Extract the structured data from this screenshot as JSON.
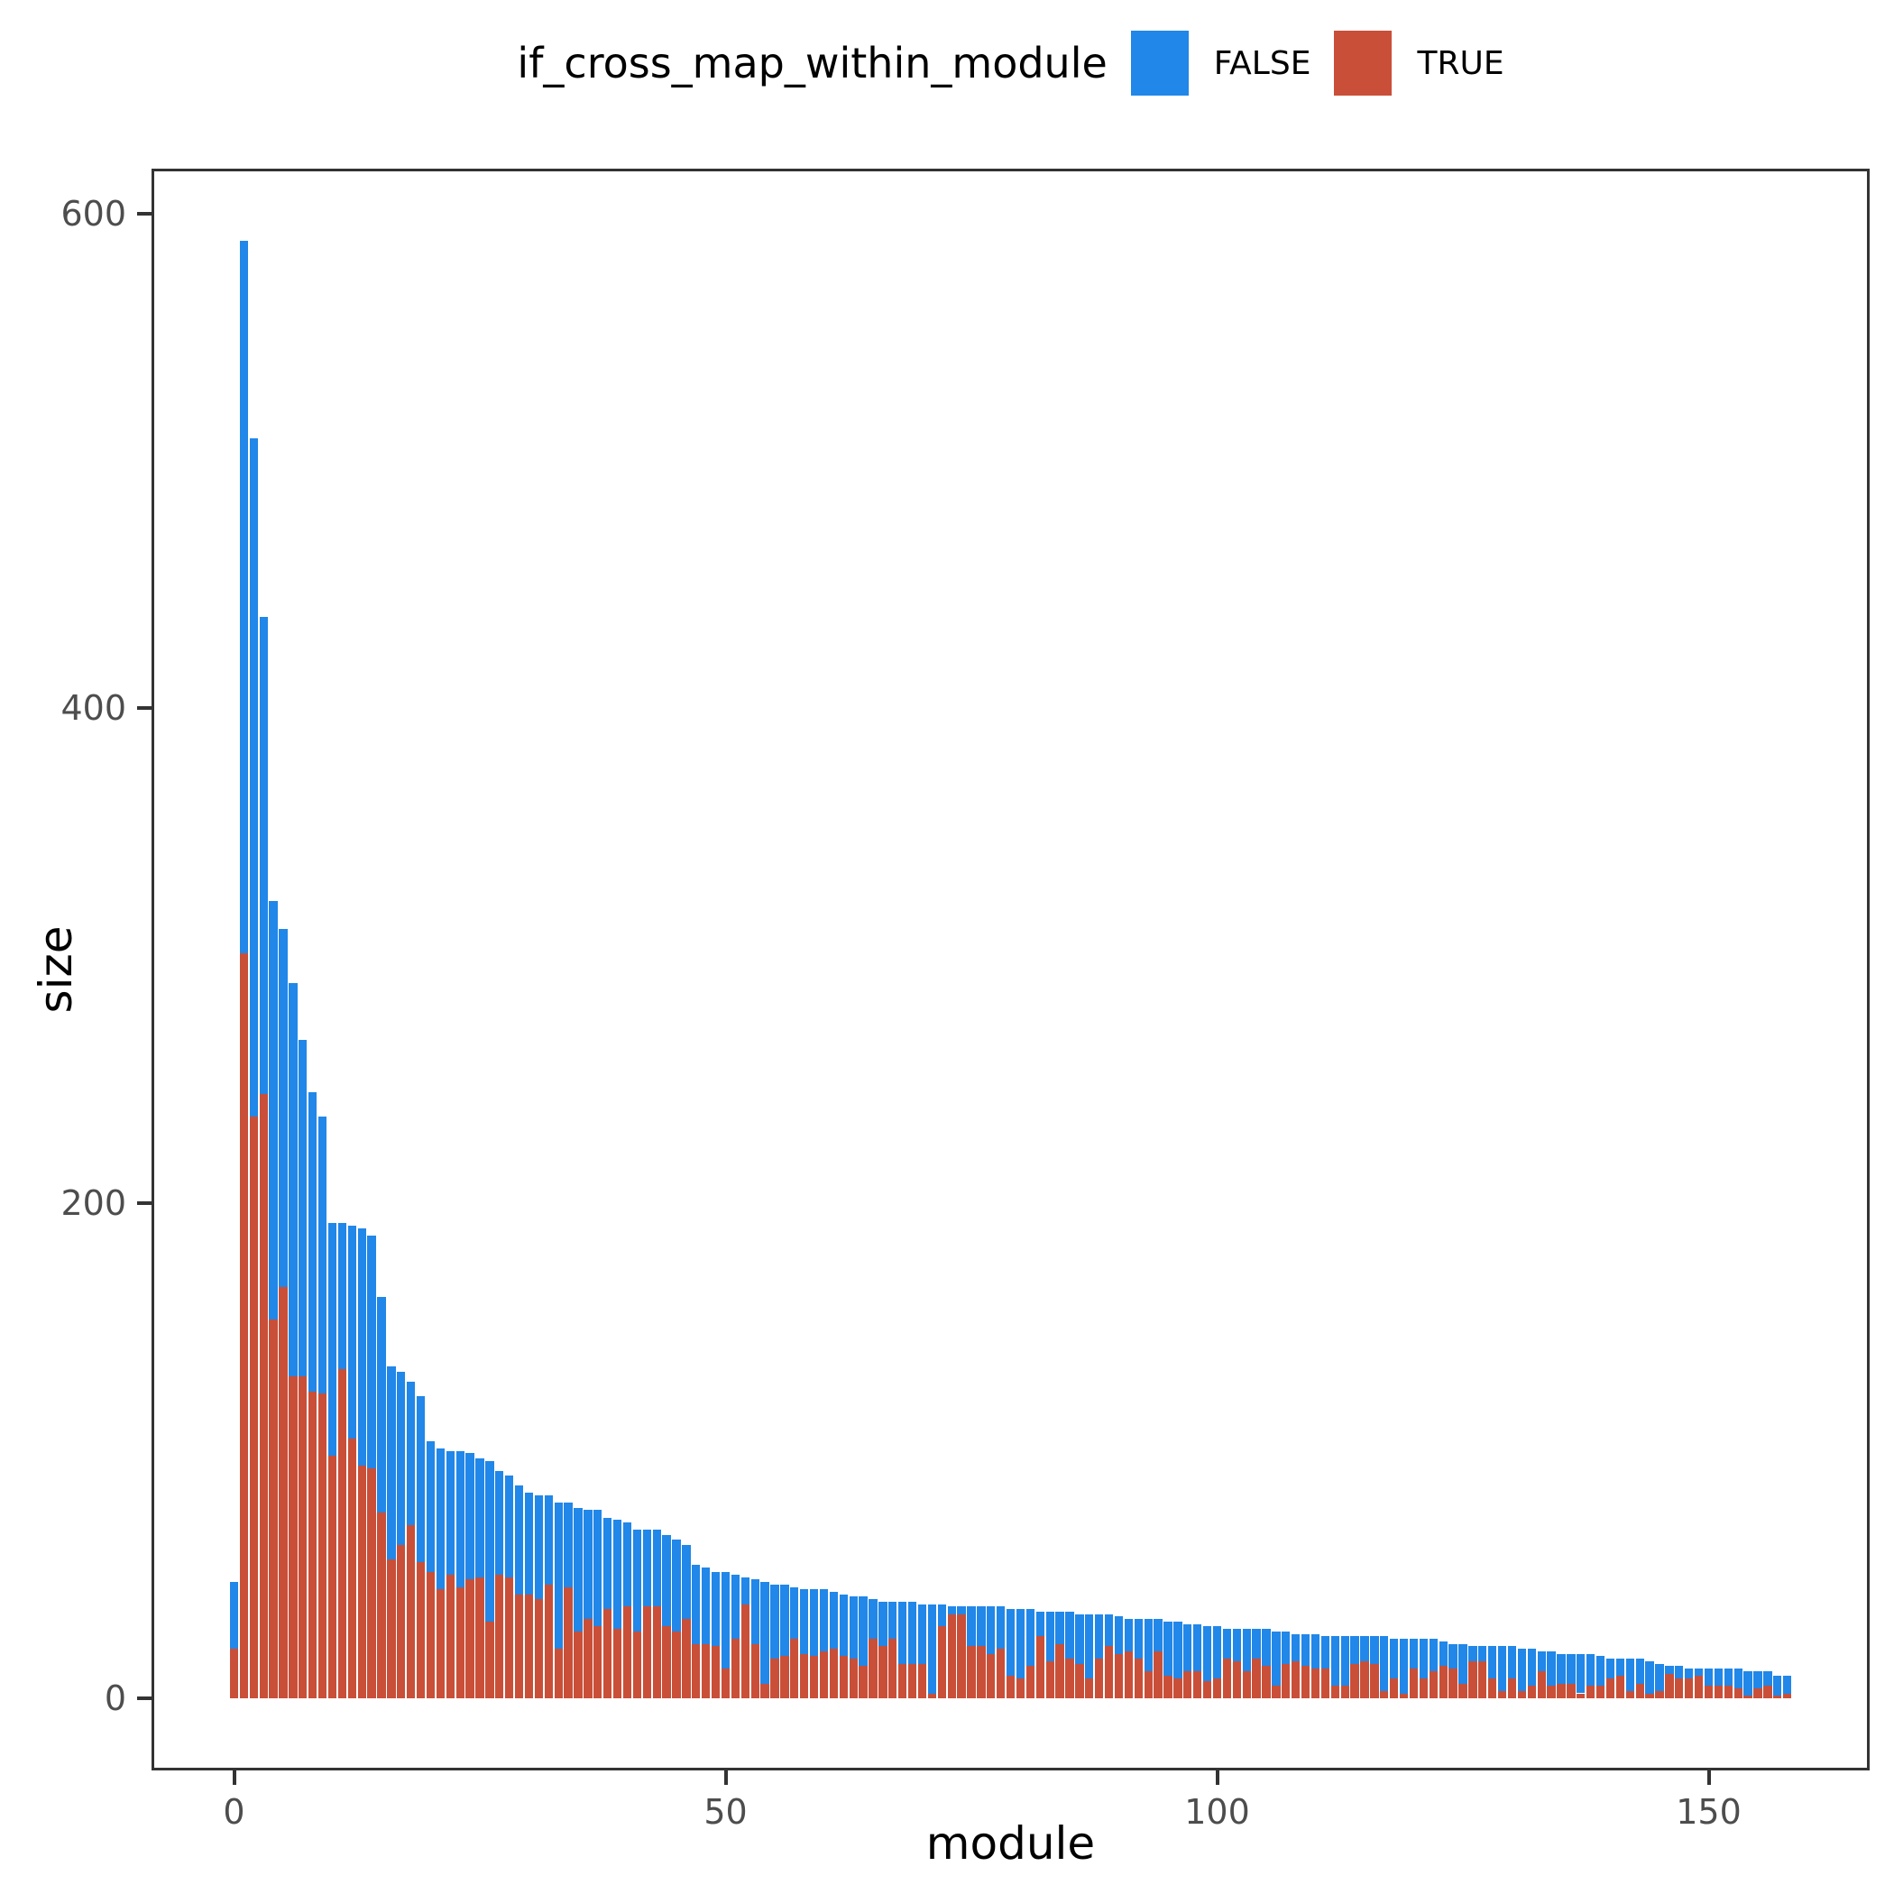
{
  "legend": {
    "title": "if_cross_map_within_module",
    "items": [
      {
        "label": "FALSE",
        "color": "#2187E8"
      },
      {
        "label": "TRUE",
        "color": "#C94F38"
      }
    ]
  },
  "axes": {
    "x": {
      "title": "module",
      "ticks": [
        0,
        50,
        100,
        150
      ]
    },
    "y": {
      "title": "size",
      "ticks": [
        0,
        200,
        400,
        600
      ]
    }
  },
  "chart_data": {
    "type": "bar",
    "stacked": true,
    "title": "",
    "xlabel": "module",
    "ylabel": "size",
    "legend_position": "top",
    "grid": false,
    "ylim": [
      -29,
      618
    ],
    "xlim": [
      -9,
      166
    ],
    "x": {
      "from": 0,
      "to": 158,
      "step": 1
    },
    "stack_order_bottom_to_top": [
      "TRUE",
      "FALSE"
    ],
    "series": [
      {
        "name": "TRUE",
        "color": "#C94F38",
        "values": [
          20,
          301,
          235,
          244,
          153,
          166,
          130,
          130,
          124,
          123,
          98,
          133,
          105,
          94,
          93,
          75,
          56,
          62,
          70,
          55,
          51,
          44,
          50,
          45,
          48,
          49,
          31,
          50,
          49,
          42,
          42,
          40,
          46,
          20,
          45,
          27,
          32,
          29,
          36,
          28,
          37,
          27,
          37,
          37,
          29,
          27,
          32,
          22,
          22,
          21,
          12,
          24,
          38,
          22,
          6,
          16,
          17,
          24,
          18,
          17,
          19,
          20,
          17,
          16,
          13,
          24,
          21,
          24,
          14,
          14,
          14,
          2,
          29,
          34,
          34,
          21,
          21,
          18,
          20,
          9,
          8,
          13,
          25,
          15,
          22,
          16,
          14,
          8,
          16,
          21,
          18,
          19,
          16,
          11,
          19,
          9,
          8,
          11,
          11,
          7,
          8,
          16,
          15,
          11,
          16,
          13,
          5,
          14,
          15,
          13,
          12,
          12,
          5,
          5,
          14,
          15,
          14,
          3,
          8,
          2,
          12,
          8,
          11,
          13,
          12,
          6,
          15,
          15,
          8,
          3,
          8,
          3,
          5,
          11,
          5,
          6,
          6,
          2,
          5,
          5,
          8,
          9,
          3,
          6,
          2,
          3,
          10,
          8,
          8,
          9,
          5,
          5,
          5,
          4,
          1,
          4,
          5,
          1,
          2
        ]
      },
      {
        "name": "FALSE",
        "color": "#2187E8",
        "values": [
          27,
          288,
          274,
          193,
          169,
          145,
          159,
          136,
          121,
          112,
          94,
          59,
          86,
          96,
          94,
          87,
          78,
          70,
          58,
          67,
          53,
          57,
          50,
          55,
          51,
          48,
          65,
          42,
          41,
          44,
          41,
          42,
          36,
          59,
          34,
          50,
          44,
          47,
          37,
          44,
          34,
          41,
          31,
          31,
          37,
          37,
          30,
          32,
          31,
          30,
          39,
          26,
          11,
          26,
          41,
          30,
          29,
          21,
          26,
          27,
          25,
          23,
          25,
          25,
          28,
          16,
          18,
          15,
          25,
          25,
          24,
          36,
          9,
          3,
          3,
          16,
          16,
          19,
          17,
          27,
          28,
          23,
          10,
          20,
          13,
          19,
          20,
          26,
          18,
          13,
          15,
          13,
          16,
          21,
          13,
          22,
          23,
          19,
          19,
          22,
          21,
          12,
          13,
          17,
          12,
          15,
          22,
          13,
          11,
          13,
          14,
          13,
          20,
          20,
          11,
          10,
          11,
          22,
          16,
          22,
          12,
          16,
          13,
          10,
          10,
          16,
          6,
          6,
          13,
          18,
          13,
          17,
          15,
          8,
          14,
          12,
          12,
          16,
          13,
          12,
          8,
          7,
          13,
          10,
          13,
          11,
          3,
          5,
          4,
          3,
          7,
          7,
          7,
          8,
          10,
          7,
          6,
          8,
          7
        ]
      }
    ]
  }
}
